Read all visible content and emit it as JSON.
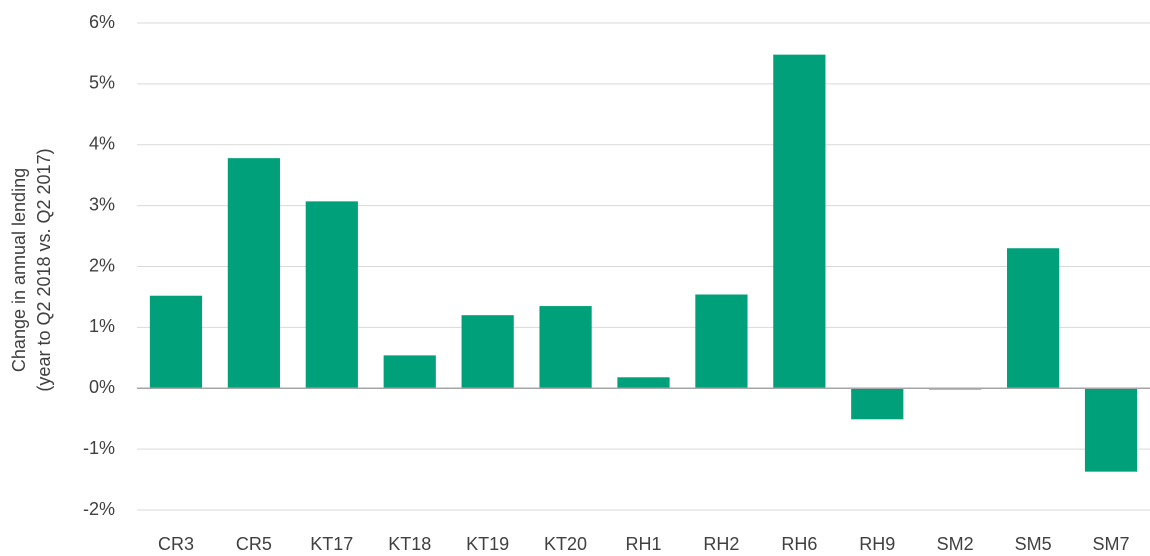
{
  "chart_data": {
    "type": "bar",
    "y_label": [
      "Change in annual lending",
      "(year to Q2 2018 vs. Q2 2017)"
    ],
    "categories": [
      "CR3",
      "CR5",
      "KT17",
      "KT18",
      "KT19",
      "KT20",
      "RH1",
      "RH2",
      "RH6",
      "RH9",
      "SM2",
      "SM5",
      "SM7"
    ],
    "values": [
      1.52,
      3.78,
      3.07,
      0.54,
      1.2,
      1.35,
      0.18,
      1.54,
      5.48,
      -0.51,
      -0.02,
      2.3,
      -1.37
    ],
    "color": "#00a07a",
    "ylim": [
      -2,
      6
    ],
    "yticks": [
      {
        "value": -2,
        "label": "-2%"
      },
      {
        "value": -1,
        "label": "-1%"
      },
      {
        "value": 0,
        "label": "0%"
      },
      {
        "value": 1,
        "label": "1%"
      },
      {
        "value": 2,
        "label": "2%"
      },
      {
        "value": 3,
        "label": "3%"
      },
      {
        "value": 4,
        "label": "4%"
      },
      {
        "value": 5,
        "label": "5%"
      },
      {
        "value": 6,
        "label": "6%"
      }
    ],
    "grid": true
  }
}
